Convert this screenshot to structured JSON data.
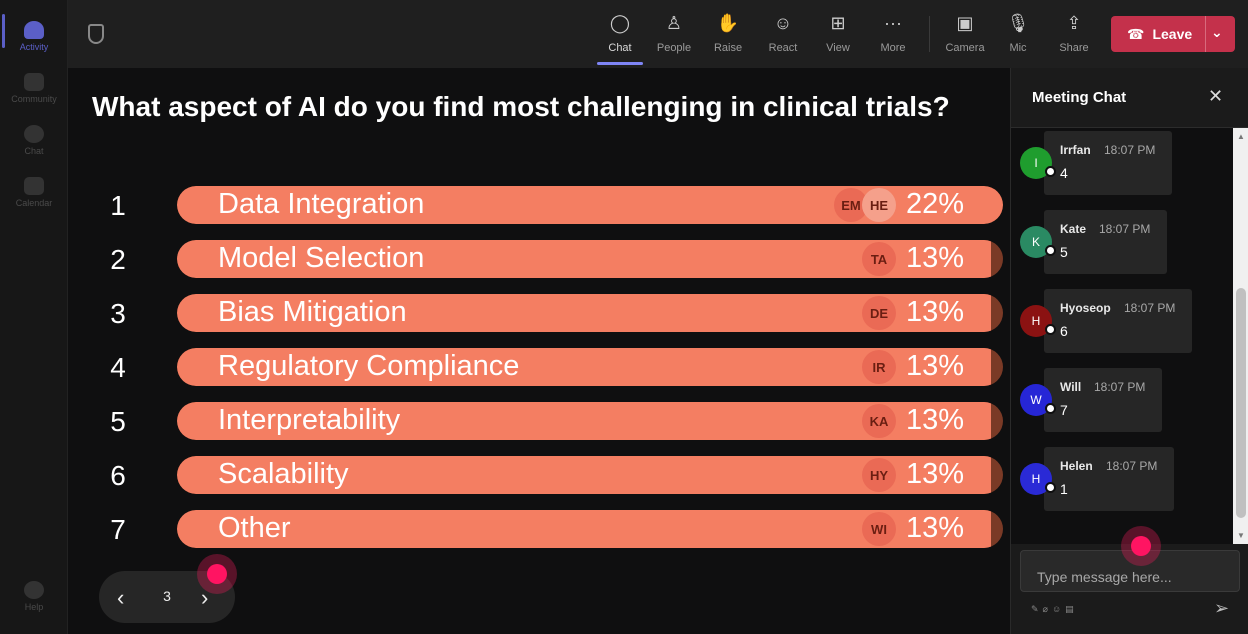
{
  "rail": {
    "items": [
      {
        "label": "Activity",
        "icon": "bell-icon"
      },
      {
        "label": "Community",
        "icon": "community-icon"
      },
      {
        "label": "Chat",
        "icon": "chat-icon"
      },
      {
        "label": "Calendar",
        "icon": "calendar-icon"
      },
      {
        "label": "Help",
        "icon": "help-icon"
      }
    ]
  },
  "toolbar": {
    "chat": "Chat",
    "people": "People",
    "raise": "Raise",
    "react": "React",
    "view": "View",
    "more": "More",
    "camera": "Camera",
    "mic": "Mic",
    "share": "Share",
    "leave": "Leave"
  },
  "poll": {
    "question": "What aspect of AI do you find most challenging in clinical trials?",
    "options": [
      {
        "rank": "1",
        "label": "Data Integration",
        "percent": "22%",
        "fill": 1.0,
        "avatars": [
          "EM",
          "HE"
        ]
      },
      {
        "rank": "2",
        "label": "Model Selection",
        "percent": "13%",
        "fill": 0.985,
        "avatars": [
          "TA"
        ]
      },
      {
        "rank": "3",
        "label": "Bias Mitigation",
        "percent": "13%",
        "fill": 0.985,
        "avatars": [
          "DE"
        ]
      },
      {
        "rank": "4",
        "label": "Regulatory Compliance",
        "percent": "13%",
        "fill": 0.985,
        "avatars": [
          "IR"
        ]
      },
      {
        "rank": "5",
        "label": "Interpretability",
        "percent": "13%",
        "fill": 0.985,
        "avatars": [
          "KA"
        ]
      },
      {
        "rank": "6",
        "label": "Scalability",
        "percent": "13%",
        "fill": 0.985,
        "avatars": [
          "HY"
        ]
      },
      {
        "rank": "7",
        "label": "Other",
        "percent": "13%",
        "fill": 0.985,
        "avatars": [
          "WI"
        ]
      }
    ]
  },
  "pager": {
    "page": "3"
  },
  "chat": {
    "title": "Meeting Chat",
    "messages": [
      {
        "initial": "I",
        "name": "Irrfan",
        "time": "18:07 PM",
        "text": "4",
        "color": "#1f9d2e"
      },
      {
        "initial": "K",
        "name": "Kate",
        "time": "18:07 PM",
        "text": "5",
        "color": "#2a8a63"
      },
      {
        "initial": "H",
        "name": "Hyoseop",
        "time": "18:07 PM",
        "text": "6",
        "color": "#8b1212"
      },
      {
        "initial": "W",
        "name": "Will",
        "time": "18:07 PM",
        "text": "7",
        "color": "#2626d6"
      },
      {
        "initial": "H",
        "name": "Helen",
        "time": "18:07 PM",
        "text": "1",
        "color": "#2a2ad6"
      }
    ],
    "input_placeholder": "Type message here..."
  }
}
